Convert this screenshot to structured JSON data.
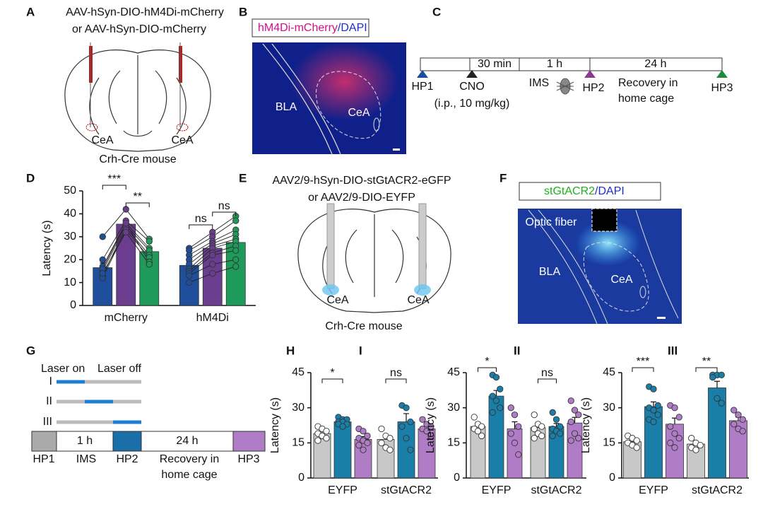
{
  "panel_labels": {
    "a": "A",
    "b": "B",
    "c": "C",
    "d": "D",
    "e": "E",
    "f": "F",
    "g": "G",
    "h": "H",
    "i": "I",
    "ii": "II",
    "iii": "III"
  },
  "panel_a": {
    "line1": "AAV-hSyn-DIO-hM4Di-mCherry",
    "line2": "or AAV-hSyn-DIO-mCherry",
    "region_left": "CeA",
    "region_right": "CeA",
    "caption": "Crh-Cre mouse"
  },
  "panel_b": {
    "stain": "hM4Di-mCherry",
    "counterstain": "/DAPI",
    "region_1": "BLA",
    "region_2": "CeA"
  },
  "panel_c": {
    "step_1": "30 min",
    "step_2": "1 h",
    "step_3": "24 h",
    "event_1": "HP1",
    "event_2": "CNO",
    "dose": "(i.p., 10 mg/kg)",
    "event_3": "IMS",
    "event_4": "HP2",
    "recovery_1": "Recovery in",
    "recovery_2": "home cage",
    "event_5": "HP3"
  },
  "panel_e": {
    "line1": "AAV2/9-hSyn-DIO-stGtACR2-eGFP",
    "line2": "or AAV2/9-DIO-EYFP",
    "region_left": "CeA",
    "region_right": "CeA",
    "caption": "Crh-Cre mouse"
  },
  "panel_f": {
    "stain": "stGtACR2",
    "counterstain": "/DAPI",
    "fiber": "Optic fiber",
    "region_1": "BLA",
    "region_2": "CeA"
  },
  "panel_g": {
    "laser_on": "Laser on",
    "laser_off": "Laser off",
    "row_1": "I",
    "row_2": "II",
    "row_3": "III",
    "step_1": "1 h",
    "step_2": "24 h",
    "event_1": "HP1",
    "event_2": "IMS",
    "event_3": "HP2",
    "recovery_1": "Recovery in",
    "recovery_2": "home cage",
    "event_4": "HP3"
  },
  "chart_data": [
    {
      "type": "bar",
      "ylabel": "Latency (s)",
      "categories": [
        "mCherry",
        "hM4Di"
      ],
      "ylim": [
        0,
        50
      ],
      "yticks": [
        0,
        10,
        20,
        30,
        40,
        50
      ],
      "paired": true,
      "annotations": [
        "***",
        "**",
        "ns",
        "ns"
      ],
      "series": [
        {
          "color": "#1f4e9c",
          "values": [
            16.5,
            17.5
          ],
          "errors": [
            2,
            1.5
          ],
          "points": [
            [
              30,
              20,
              17,
              15,
              13,
              12,
              16,
              14
            ],
            [
              25,
              24,
              22,
              20,
              18,
              16,
              15,
              14,
              13,
              10
            ]
          ]
        },
        {
          "color": "#6a3d8f",
          "values": [
            35.5,
            25
          ],
          "errors": [
            1.2,
            1.8
          ],
          "points": [
            [
              42,
              37,
              36,
              35,
              34,
              33,
              36,
              32
            ],
            [
              32,
              30,
              28,
              27,
              26,
              25,
              23,
              22,
              18,
              14
            ]
          ]
        },
        {
          "color": "#1e9a5a",
          "values": [
            23.5,
            27.5
          ],
          "errors": [
            1.5,
            2.2
          ],
          "points": [
            [
              29,
              28,
              25,
              24,
              22,
              21,
              19,
              18
            ],
            [
              39,
              37,
              33,
              31,
              29,
              28,
              26,
              24,
              20,
              17
            ]
          ]
        }
      ]
    },
    {
      "type": "bar",
      "ylabel": "Latency (s)",
      "categories": [
        "EYFP",
        "stGtACR2"
      ],
      "ylim": [
        0,
        45
      ],
      "yticks": [
        0,
        15,
        30,
        45
      ],
      "annotations": [
        "*",
        "ns"
      ],
      "series": [
        {
          "color": "#c8c8c8",
          "values": [
            19,
            16.5
          ],
          "errors": [
            1.2,
            1.8
          ],
          "points": [
            [
              22,
              21,
              20,
              19,
              18,
              17,
              16
            ],
            [
              21,
              18,
              17,
              15,
              13,
              12
            ]
          ]
        },
        {
          "color": "#1a7fa8",
          "values": [
            24,
            24
          ],
          "errors": [
            0.6,
            3.5
          ],
          "points": [
            [
              26,
              25,
              25,
              24,
              24,
              23,
              23,
              22
            ],
            [
              31,
              30,
              24,
              22,
              17,
              12
            ]
          ]
        },
        {
          "color": "#b07cc6",
          "values": [
            16.5,
            21
          ],
          "errors": [
            1.2,
            1.3
          ],
          "points": [
            [
              21,
              20,
              18,
              17,
              16,
              15,
              14,
              12
            ],
            [
              25,
              23,
              22,
              21,
              20,
              18
            ]
          ]
        }
      ]
    },
    {
      "type": "bar",
      "ylabel": "Latency (s)",
      "categories": [
        "EYFP",
        "stGtACR2"
      ],
      "ylim": [
        0,
        45
      ],
      "yticks": [
        0,
        15,
        30,
        45
      ],
      "annotations": [
        "*",
        "ns"
      ],
      "series": [
        {
          "color": "#c8c8c8",
          "values": [
            22,
            21.5
          ],
          "errors": [
            1.2,
            1.2
          ],
          "points": [
            [
              26,
              23,
              22,
              21,
              20,
              18
            ],
            [
              27,
              23,
              22,
              21,
              19,
              18,
              17
            ]
          ]
        },
        {
          "color": "#1a7fa8",
          "values": [
            35,
            22
          ],
          "errors": [
            2.4,
            1.3
          ],
          "points": [
            [
              44,
              43,
              38,
              35,
              33,
              30,
              28
            ],
            [
              28,
              25,
              22,
              21,
              20,
              19,
              18
            ]
          ]
        },
        {
          "color": "#b07cc6",
          "values": [
            21,
            23.5
          ],
          "errors": [
            3,
            2.4
          ],
          "points": [
            [
              30,
              27,
              22,
              19,
              15,
              10
            ],
            [
              33,
              29,
              27,
              24,
              19,
              17,
              16
            ]
          ]
        }
      ]
    },
    {
      "type": "bar",
      "ylabel": "Latency (s)",
      "categories": [
        "EYFP",
        "stGtACR2"
      ],
      "ylim": [
        0,
        45
      ],
      "yticks": [
        0,
        15,
        30,
        45
      ],
      "annotations": [
        "***",
        "**"
      ],
      "series": [
        {
          "color": "#c8c8c8",
          "values": [
            15.5,
            14.5
          ],
          "errors": [
            0.8,
            1
          ],
          "points": [
            [
              18,
              17,
              16,
              15,
              14,
              13
            ],
            [
              17,
              15,
              14,
              13,
              12
            ]
          ]
        },
        {
          "color": "#1a7fa8",
          "values": [
            30.5,
            38.5
          ],
          "errors": [
            2,
            2.8
          ],
          "points": [
            [
              39,
              38,
              31,
              30,
              29,
              27,
              25,
              24
            ],
            [
              44,
              44,
              44,
              43,
              34,
              32
            ]
          ]
        },
        {
          "color": "#b07cc6",
          "values": [
            23,
            24.5
          ],
          "errors": [
            2.6,
            1.5
          ],
          "points": [
            [
              31,
              30,
              26,
              22,
              19,
              17,
              15,
              13
            ],
            [
              29,
              27,
              25,
              23,
              21,
              20
            ]
          ]
        }
      ]
    }
  ]
}
